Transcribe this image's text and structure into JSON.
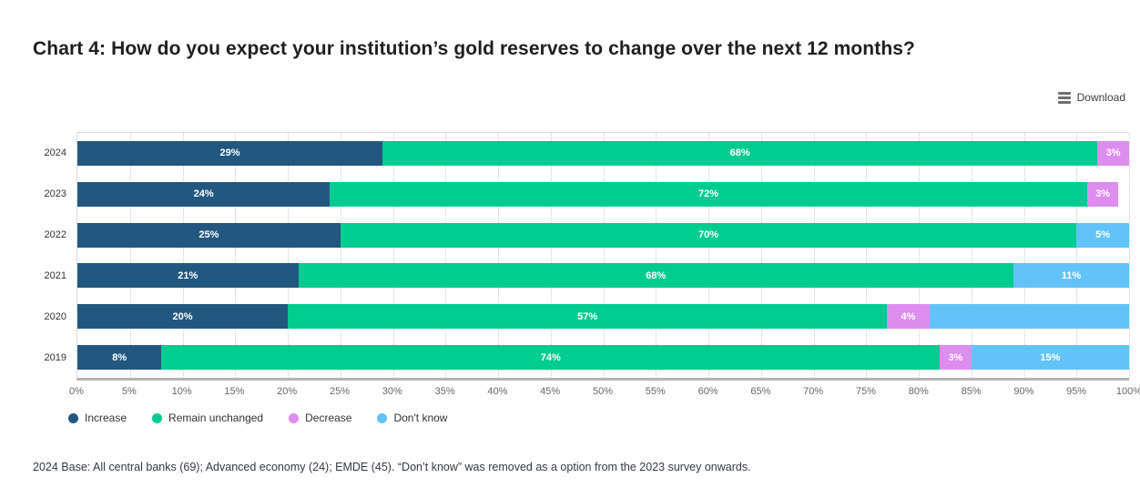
{
  "page": {
    "title": "Chart 4: How do you expect your institution’s gold reserves to change over the next 12 months?",
    "download_label": "Download",
    "footnote": "2024 Base: All central banks (69); Advanced economy (24); EMDE (45). “Don’t know” was removed as a option from the 2023 survey onwards."
  },
  "chart_data": {
    "type": "bar",
    "orientation": "horizontal-stacked",
    "title": "Chart 4: How do you expect your institution’s gold reserves to change over the next 12 months?",
    "categories": [
      "2024",
      "2023",
      "2022",
      "2021",
      "2020",
      "2019"
    ],
    "series": [
      {
        "name": "Increase",
        "color": "#225880",
        "values": [
          29,
          24,
          25,
          21,
          20,
          8
        ]
      },
      {
        "name": "Remain unchanged",
        "color": "#00cc8f",
        "values": [
          68,
          72,
          70,
          68,
          57,
          74
        ]
      },
      {
        "name": "Decrease",
        "color": "#dd8dee",
        "values": [
          3,
          3,
          0,
          0,
          4,
          3
        ]
      },
      {
        "name": "Don't know",
        "color": "#62c3f8",
        "values": [
          0,
          0,
          5,
          11,
          19,
          15
        ]
      }
    ],
    "rows": [
      {
        "year": "2024",
        "segments": [
          [
            "Increase",
            29,
            "29%"
          ],
          [
            "Remain unchanged",
            68,
            "68%"
          ],
          [
            "Decrease",
            3,
            "3%"
          ]
        ]
      },
      {
        "year": "2023",
        "segments": [
          [
            "Increase",
            24,
            "24%"
          ],
          [
            "Remain unchanged",
            72,
            "72%"
          ],
          [
            "Decrease",
            3,
            "3%"
          ]
        ]
      },
      {
        "year": "2022",
        "segments": [
          [
            "Increase",
            25,
            "25%"
          ],
          [
            "Remain unchanged",
            70,
            "70%"
          ],
          [
            "Don't know",
            5,
            "5%"
          ]
        ]
      },
      {
        "year": "2021",
        "segments": [
          [
            "Increase",
            21,
            "21%"
          ],
          [
            "Remain unchanged",
            68,
            "68%"
          ],
          [
            "Don't know",
            11,
            "11%"
          ]
        ]
      },
      {
        "year": "2020",
        "segments": [
          [
            "Increase",
            20,
            "20%"
          ],
          [
            "Remain unchanged",
            57,
            "57%"
          ],
          [
            "Decrease",
            4,
            "4%"
          ],
          [
            "Don't know",
            19,
            ""
          ]
        ]
      },
      {
        "year": "2019",
        "segments": [
          [
            "Increase",
            8,
            "8%"
          ],
          [
            "Remain unchanged",
            74,
            "74%"
          ],
          [
            "Decrease",
            3,
            "3%"
          ],
          [
            "Don't know",
            15,
            "15%"
          ]
        ]
      }
    ],
    "legend": [
      {
        "name": "Increase",
        "color": "#225880"
      },
      {
        "name": "Remain unchanged",
        "color": "#00cc8f"
      },
      {
        "name": "Decrease",
        "color": "#dd8dee"
      },
      {
        "name": "Don't know",
        "color": "#62c3f8"
      }
    ],
    "x_ticks": [
      "0%",
      "5%",
      "10%",
      "15%",
      "20%",
      "25%",
      "30%",
      "35%",
      "40%",
      "45%",
      "50%",
      "55%",
      "60%",
      "65%",
      "70%",
      "75%",
      "80%",
      "85%",
      "90%",
      "95%",
      "100%"
    ],
    "xlim": [
      0,
      100
    ],
    "grid": "vertical dotted lines every 5%",
    "legend_position": "bottom-left",
    "data_label_note": "Values shown as n% inside segments; the 19% Don't know segment of 2020 has no visible label; 2023 bar totals 99%."
  }
}
